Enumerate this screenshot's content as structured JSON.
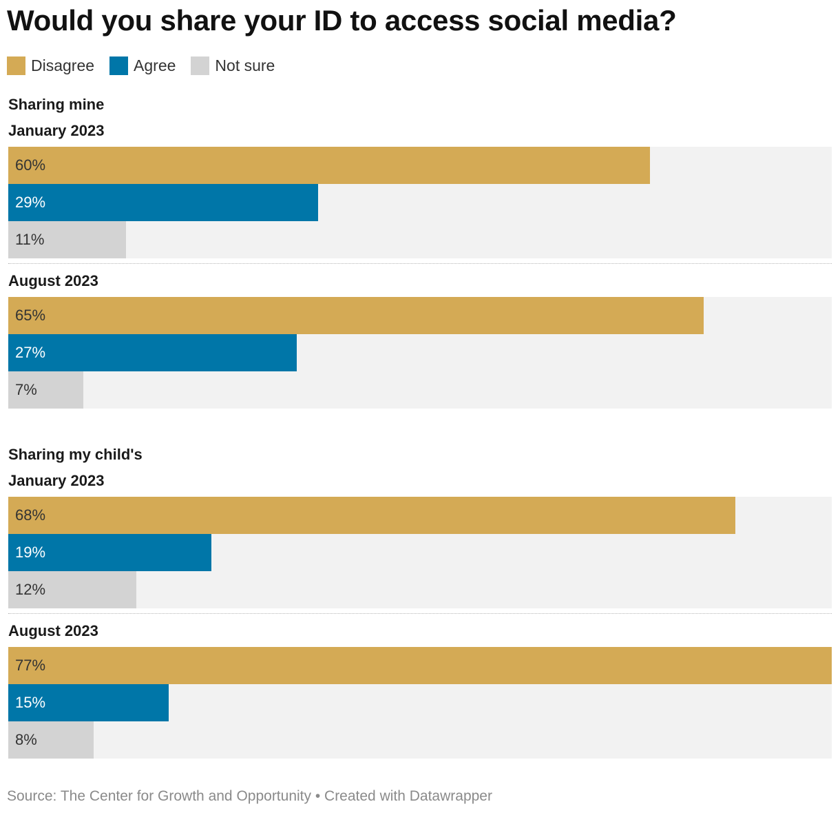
{
  "chart_data": {
    "type": "bar",
    "orientation": "horizontal",
    "title": "Would you share your ID to access social media?",
    "legend": [
      {
        "name": "Disagree",
        "color": "#d4aa55"
      },
      {
        "name": "Agree",
        "color": "#0076a8"
      },
      {
        "name": "Not sure",
        "color": "#d3d3d3"
      }
    ],
    "xlim": [
      0,
      77
    ],
    "unit": "%",
    "groups": [
      {
        "label": "Sharing mine",
        "periods": [
          {
            "label": "January 2023",
            "values": [
              60,
              29,
              11
            ]
          },
          {
            "label": "August 2023",
            "values": [
              65,
              27,
              7
            ]
          }
        ]
      },
      {
        "label": "Sharing my child's",
        "periods": [
          {
            "label": "January 2023",
            "values": [
              68,
              19,
              12
            ]
          },
          {
            "label": "August 2023",
            "values": [
              77,
              15,
              8
            ]
          }
        ]
      }
    ]
  },
  "labels": {
    "value_color_dark": "#333333",
    "value_color_light": "#ffffff"
  },
  "footer": {
    "source": "Source: The Center for Growth and Opportunity • Created with Datawrapper"
  }
}
